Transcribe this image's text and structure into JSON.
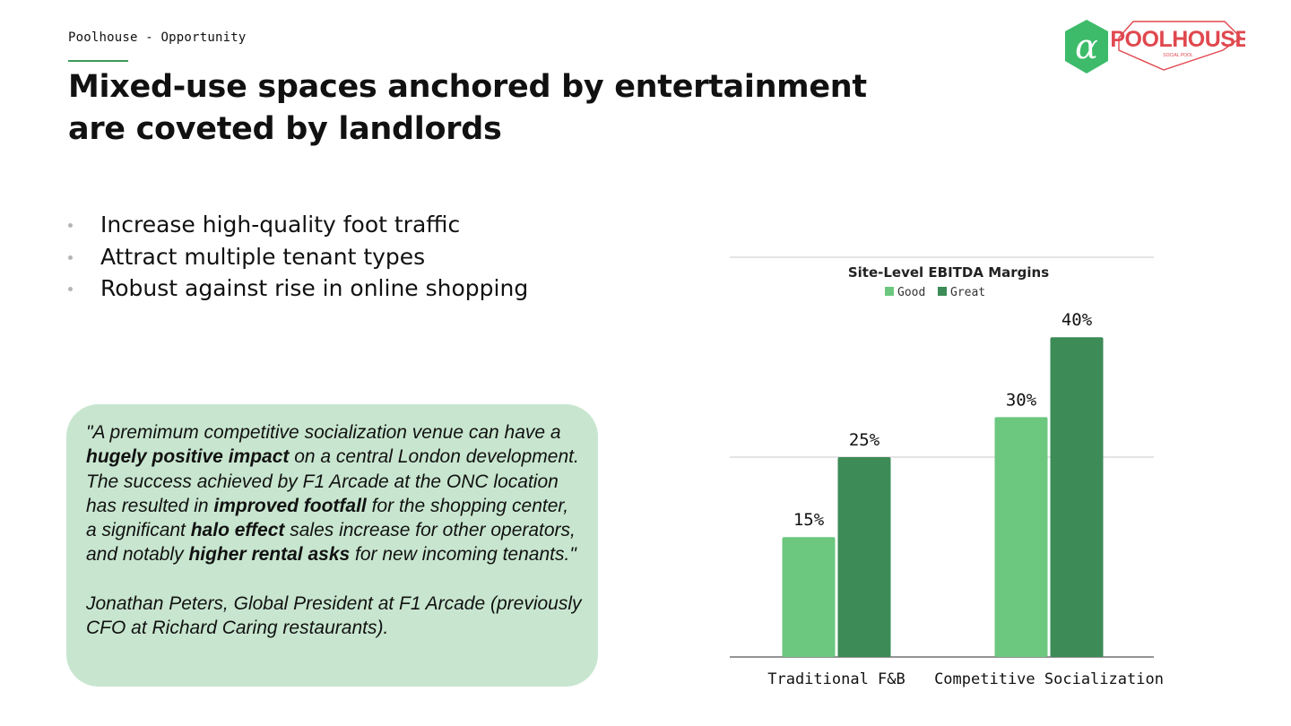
{
  "header": {
    "eyebrow": "Poolhouse - Opportunity",
    "title": "Mixed-use spaces anchored by entertainment are coveted by landlords"
  },
  "logo": {
    "symbol": "α",
    "wordmark": "POOLHOUSE",
    "tagline": "SOCIAL POOL",
    "colors": {
      "hexagon": "#3dbb6a",
      "wordmark": "#e0484f"
    }
  },
  "bullets": [
    "Increase high-quality foot traffic",
    "Attract multiple tenant types",
    "Robust against rise in online shopping"
  ],
  "quote": {
    "segments": [
      {
        "text": "\"A premimum competitive socialization venue can have a ",
        "bold": false
      },
      {
        "text": "hugely positive impact",
        "bold": true
      },
      {
        "text": " on a central London development. The success achieved by F1 Arcade at the ONC location has resulted in ",
        "bold": false
      },
      {
        "text": "improved footfall",
        "bold": true
      },
      {
        "text": " for the shopping center, a significant ",
        "bold": false
      },
      {
        "text": "halo effect",
        "bold": true
      },
      {
        "text": " sales increase for other operators, and notably ",
        "bold": false
      },
      {
        "text": "higher rental asks",
        "bold": true
      },
      {
        "text": " for new incoming tenants.\"",
        "bold": false
      }
    ],
    "attribution": "Jonathan Peters, Global President at F1 Arcade (previously CFO at Richard Caring restaurants)."
  },
  "chart_data": {
    "type": "bar",
    "title": "Site-Level EBITDA Margins",
    "categories": [
      "Traditional F&B",
      "Competitive Socialization"
    ],
    "series": [
      {
        "name": "Good",
        "values": [
          15,
          30
        ],
        "color": "#6cc77f"
      },
      {
        "name": "Great",
        "values": [
          25,
          40
        ],
        "color": "#3d8b57"
      }
    ],
    "value_suffix": "%",
    "ylim": [
      0,
      50
    ],
    "gridlines": [
      0,
      25,
      50
    ],
    "legend_position": "top-center",
    "xlabel": "",
    "ylabel": ""
  }
}
